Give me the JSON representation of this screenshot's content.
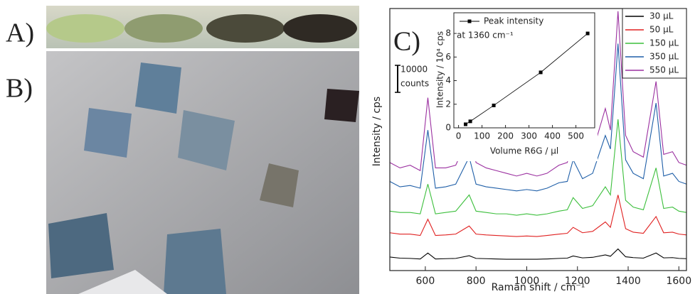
{
  "panel_labels": [
    "A)",
    "B)",
    "C)"
  ],
  "chart_data": [
    {
      "type": "line",
      "xlabel": "Raman shift / cm⁻¹",
      "ylabel": "Intensity / cps",
      "xlim": [
        460,
        1630
      ],
      "ylim": [
        0,
        97000
      ],
      "xticks": [
        600,
        800,
        1000,
        1200,
        1400,
        1600
      ],
      "scale_bar": {
        "value": 10000,
        "label": [
          "10000",
          "counts"
        ]
      },
      "legend": "upper right",
      "x": [
        460,
        500,
        540,
        580,
        610,
        640,
        680,
        720,
        773,
        800,
        840,
        880,
        920,
        960,
        1000,
        1040,
        1080,
        1127,
        1160,
        1183,
        1220,
        1260,
        1310,
        1330,
        1360,
        1390,
        1420,
        1460,
        1510,
        1540,
        1575,
        1600,
        1630
      ],
      "series": [
        {
          "name": "30 µL",
          "color": "#000000",
          "values": [
            5000,
            4600,
            4500,
            4300,
            6500,
            4300,
            4400,
            4500,
            5500,
            4500,
            4400,
            4300,
            4200,
            4200,
            4200,
            4200,
            4300,
            4500,
            4600,
            5400,
            4700,
            4900,
            5800,
            5300,
            8000,
            5100,
            4800,
            4600,
            6500,
            4700,
            4800,
            4500,
            4400
          ]
        },
        {
          "name": "50 µL",
          "color": "#e02020",
          "values": [
            14000,
            13500,
            13500,
            13000,
            19000,
            13000,
            13200,
            13500,
            16500,
            13500,
            13200,
            13000,
            12800,
            12600,
            12800,
            12600,
            13000,
            13500,
            13800,
            16000,
            14000,
            14500,
            18000,
            16000,
            28000,
            15500,
            14200,
            13800,
            20000,
            14000,
            14200,
            13500,
            13200
          ]
        },
        {
          "name": "150 µL",
          "color": "#3cbf3c",
          "values": [
            22000,
            21500,
            21500,
            21000,
            32000,
            21000,
            21500,
            22000,
            28000,
            22000,
            21500,
            21000,
            21000,
            20500,
            21000,
            20500,
            21000,
            22000,
            22500,
            27000,
            23000,
            24000,
            31000,
            28000,
            56000,
            26000,
            23500,
            22500,
            38000,
            23000,
            23500,
            22000,
            21500
          ]
        },
        {
          "name": "350 µL",
          "color": "#1f5fa8",
          "values": [
            33000,
            31000,
            31500,
            30500,
            52000,
            30500,
            31000,
            32000,
            42000,
            32000,
            31000,
            30500,
            30000,
            29500,
            30000,
            29500,
            30500,
            32500,
            33000,
            41000,
            34000,
            36000,
            50000,
            45000,
            84000,
            41000,
            36000,
            34000,
            62000,
            35000,
            36000,
            33000,
            32000
          ]
        },
        {
          "name": "550 µL",
          "color": "#9b30a0",
          "values": [
            40000,
            38000,
            39000,
            37000,
            64000,
            38000,
            38000,
            39000,
            50000,
            40000,
            38000,
            37000,
            36000,
            35000,
            36000,
            35000,
            36000,
            39000,
            40000,
            50000,
            42000,
            44000,
            60000,
            52000,
            96000,
            50000,
            44000,
            42000,
            70000,
            43000,
            44000,
            40000,
            39000
          ]
        }
      ]
    },
    {
      "type": "line",
      "xlabel": "Volume R6G / µl",
      "ylabel": "Intensity / 10⁴ cps",
      "annotation": "at 1360 cm⁻¹",
      "marker": "square",
      "xlim": [
        -20,
        580
      ],
      "ylim": [
        0,
        9.75
      ],
      "xticks": [
        0,
        100,
        200,
        300,
        400,
        500
      ],
      "yticks": [
        0,
        2,
        4,
        6,
        8
      ],
      "x": [
        30,
        50,
        150,
        350,
        550
      ],
      "series": [
        {
          "name": "Peak intensity",
          "color": "#000000",
          "values": [
            0.3,
            0.55,
            1.9,
            4.7,
            8.0
          ]
        }
      ]
    }
  ]
}
